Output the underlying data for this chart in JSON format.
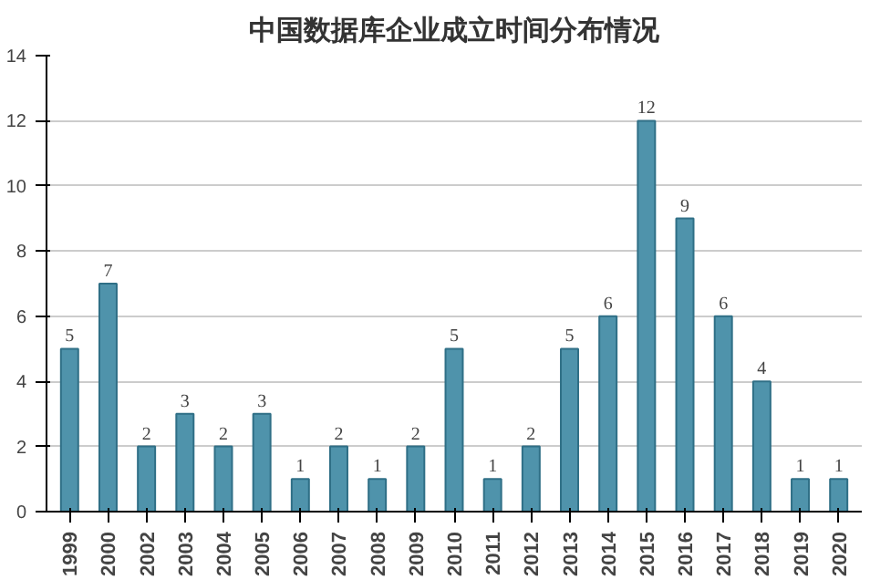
{
  "chart_data": {
    "type": "bar",
    "title": "中国数据库企业成立时间分布情况",
    "categories": [
      "1999",
      "2000",
      "2002",
      "2003",
      "2004",
      "2005",
      "2006",
      "2007",
      "2008",
      "2009",
      "2010",
      "2011",
      "2012",
      "2013",
      "2014",
      "2015",
      "2016",
      "2017",
      "2018",
      "2019",
      "2020"
    ],
    "values": [
      5,
      7,
      2,
      3,
      2,
      3,
      1,
      2,
      1,
      2,
      5,
      1,
      2,
      5,
      6,
      12,
      9,
      6,
      4,
      1,
      1
    ],
    "color": "#4f93ab",
    "ylim": [
      0,
      14
    ],
    "yticks": [
      0,
      2,
      4,
      6,
      8,
      10,
      12,
      14
    ],
    "grid": "y",
    "data_labels": true
  }
}
